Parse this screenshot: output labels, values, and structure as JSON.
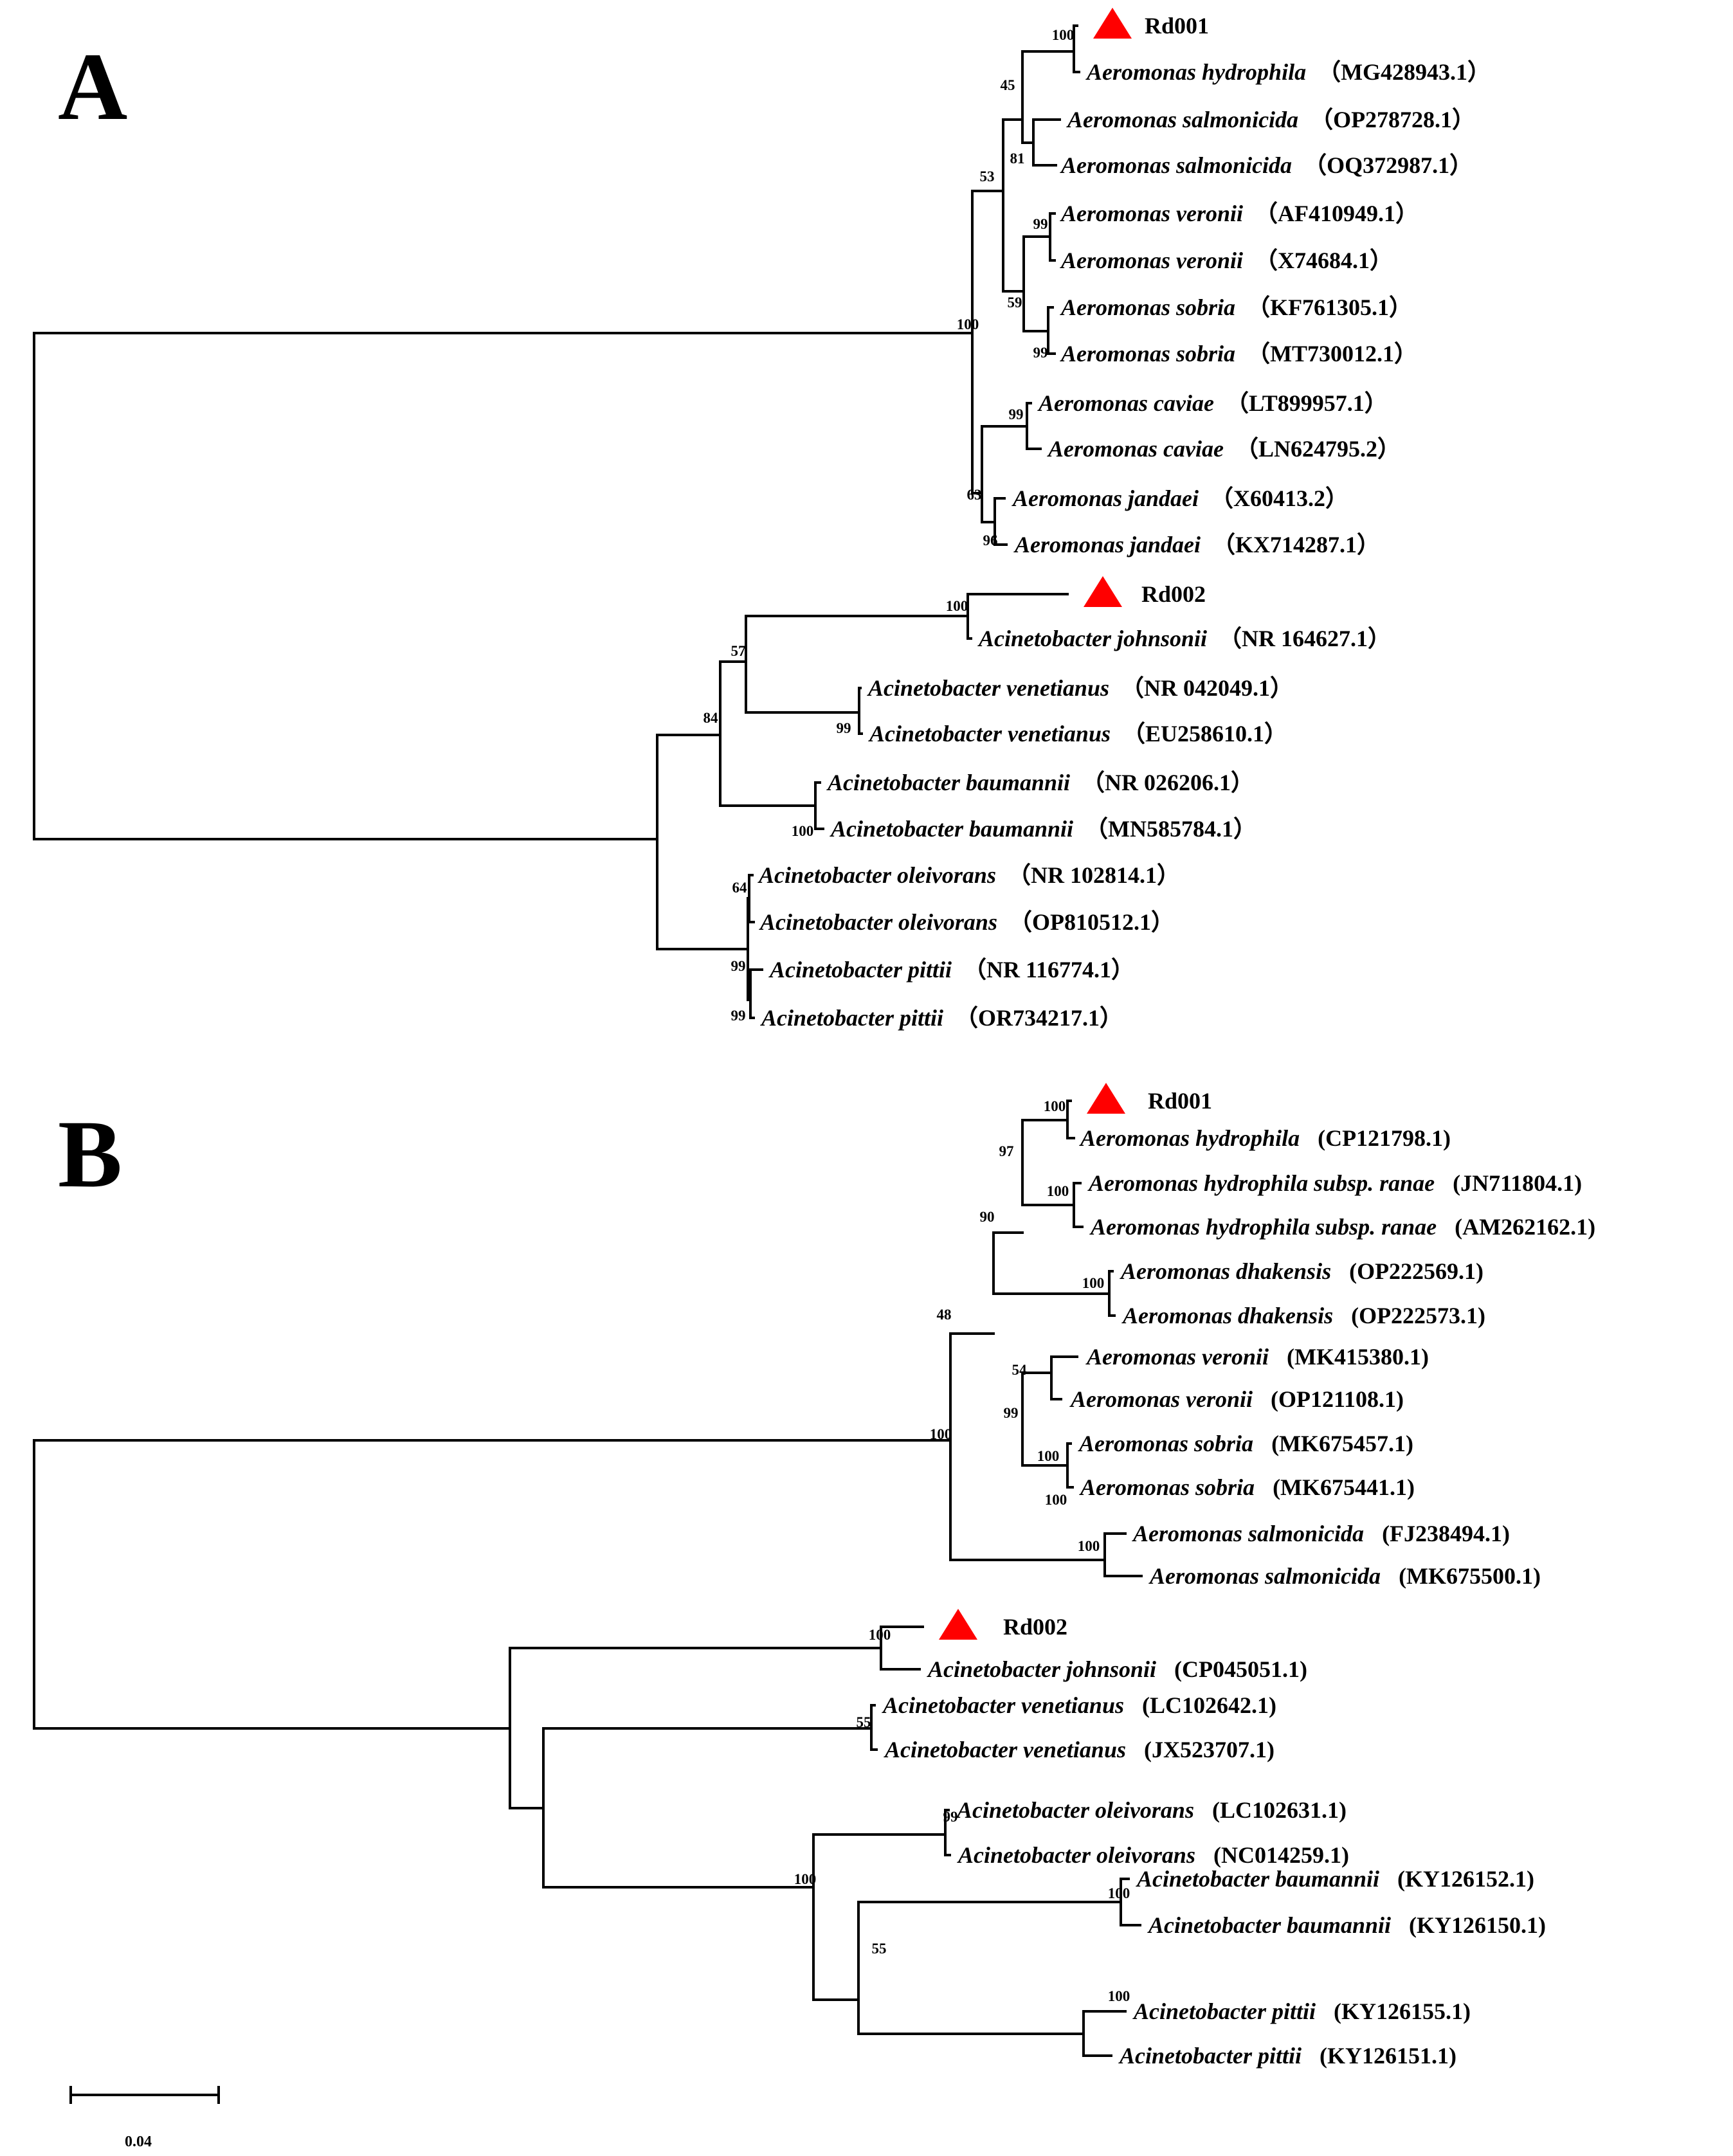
{
  "colors": {
    "marker": "#ff0000",
    "line": "#000000"
  },
  "panel_a": {
    "label": "A",
    "taxa": [
      {
        "name": "Rd001",
        "acc": "",
        "marker": true
      },
      {
        "name": "Aeromonas hydrophila",
        "acc": "（MG428943.1）"
      },
      {
        "name": "Aeromonas salmonicida",
        "acc": "（OP278728.1）"
      },
      {
        "name": "Aeromonas salmonicida",
        "acc": "（OQ372987.1）"
      },
      {
        "name": "Aeromonas veronii",
        "acc": "（AF410949.1）"
      },
      {
        "name": "Aeromonas veronii",
        "acc": "（X74684.1）"
      },
      {
        "name": "Aeromonas sobria",
        "acc": "（KF761305.1）"
      },
      {
        "name": "Aeromonas sobria",
        "acc": "（MT730012.1）"
      },
      {
        "name": "Aeromonas   caviae",
        "acc": "（LT899957.1）"
      },
      {
        "name": "Aeromonas caviae",
        "acc": "（LN624795.2）"
      },
      {
        "name": "Aeromonas jandaei",
        "acc": "（X60413.2）"
      },
      {
        "name": "Aeromonas jandaei",
        "acc": "（KX714287.1）"
      },
      {
        "name": "Rd002",
        "acc": "",
        "marker": true
      },
      {
        "name": "Acinetobacter johnsonii",
        "acc": "（NR 164627.1）"
      },
      {
        "name": "Acinetobacter venetianus",
        "acc": "（NR 042049.1）"
      },
      {
        "name": "Acinetobacter venetianus",
        "acc": "（EU258610.1）"
      },
      {
        "name": "Acinetobacter baumannii",
        "acc": "（NR 026206.1）"
      },
      {
        "name": "Acinetobacter baumannii",
        "acc": "（MN585784.1）"
      },
      {
        "name": "Acinetobacter oleivorans",
        "acc": "（NR 102814.1）"
      },
      {
        "name": "Acinetobacter oleivorans",
        "acc": "（OP810512.1）"
      },
      {
        "name": "Acinetobacter pittii",
        "acc": "（NR 116774.1）"
      },
      {
        "name": "Acinetobacter pittii",
        "acc": "（OR734217.1）"
      }
    ],
    "bootstraps": [
      "100",
      "45",
      "81",
      "53",
      "99",
      "59",
      "99",
      "100",
      "99",
      "63",
      "96",
      "100",
      "57",
      "99",
      "84",
      "100",
      "64",
      "99",
      "99"
    ]
  },
  "panel_b": {
    "label": "B",
    "taxa": [
      {
        "name": "Rd001",
        "acc": "",
        "marker": true
      },
      {
        "name": "Aeromonas hydrophila",
        "acc": "(CP121798.1)"
      },
      {
        "name": "Aeromonas hydrophila subsp. ranae",
        "acc": "(JN711804.1)"
      },
      {
        "name": "Aeromonas hydrophila subsp. ranae",
        "acc": "(AM262162.1)"
      },
      {
        "name": "Aeromonas dhakensis",
        "acc": "(OP222569.1)"
      },
      {
        "name": "Aeromonas dhakensis",
        "acc": "(OP222573.1)"
      },
      {
        "name": "Aeromonas veronii",
        "acc": "(MK415380.1)"
      },
      {
        "name": "Aeromonas veronii",
        "acc": "(OP121108.1)"
      },
      {
        "name": "Aeromonas sobria",
        "acc": "(MK675457.1)"
      },
      {
        "name": "Aeromonas sobria",
        "acc": "(MK675441.1)"
      },
      {
        "name": "Aeromonas salmonicida",
        "acc": "(FJ238494.1)"
      },
      {
        "name": "Aeromonas salmonicida",
        "acc": "(MK675500.1)"
      },
      {
        "name": "Rd002",
        "acc": "",
        "marker": true
      },
      {
        "name": "Acinetobacter johnsonii",
        "acc": "(CP045051.1)"
      },
      {
        "name": "Acinetobacter venetianus",
        "acc": "(LC102642.1)"
      },
      {
        "name": "Acinetobacter venetianus",
        "acc": "(JX523707.1)"
      },
      {
        "name": "Acinetobacter oleivorans",
        "acc": "(LC102631.1)"
      },
      {
        "name": "Acinetobacter oleivorans",
        "acc": "(NC014259.1)"
      },
      {
        "name": "Acinetobacter baumannii",
        "acc": "(KY126152.1)"
      },
      {
        "name": "Acinetobacter baumannii",
        "acc": "(KY126150.1)"
      },
      {
        "name": "Acinetobacter pittii",
        "acc": "(KY126155.1)"
      },
      {
        "name": "Acinetobacter pittii",
        "acc": "(KY126151.1)"
      }
    ],
    "bootstraps": [
      "100",
      "97",
      "100",
      "90",
      "100",
      "48",
      "54",
      "99",
      "100",
      "100",
      "100",
      "100",
      "100",
      "55",
      "99",
      "100",
      "100",
      "55",
      "100"
    ]
  },
  "scale_bar": {
    "label": "0.04",
    "value": 0.04
  }
}
